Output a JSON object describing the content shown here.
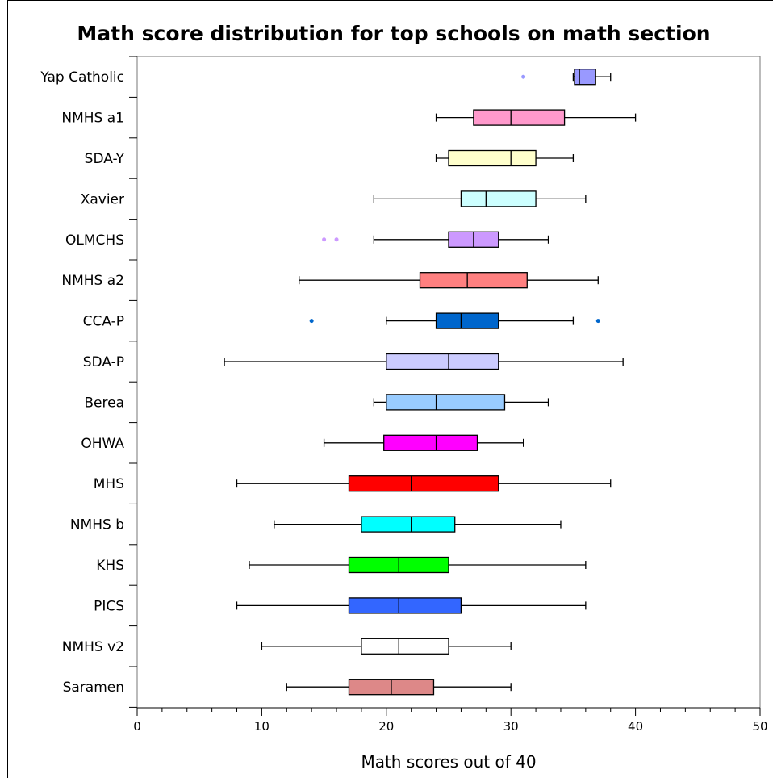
{
  "chart_data": {
    "type": "boxplot",
    "orientation": "horizontal",
    "title": "Math score distribution for top schools on math section",
    "xlabel": "Math scores out of 40",
    "xlim": [
      0,
      50
    ],
    "xticks": [
      0,
      10,
      20,
      30,
      40,
      50
    ],
    "grid": false,
    "legend": "none",
    "series": [
      {
        "name": "Yap Catholic",
        "color": "#9999ff",
        "whisker_low": 35,
        "q1": 35.1,
        "median": 35.5,
        "q3": 36.8,
        "whisker_high": 38,
        "outliers": [
          31
        ]
      },
      {
        "name": "NMHS a1",
        "color": "#ff99cc",
        "whisker_low": 24,
        "q1": 27,
        "median": 30,
        "q3": 34.3,
        "whisker_high": 40,
        "outliers": []
      },
      {
        "name": "SDA-Y",
        "color": "#ffffcc",
        "whisker_low": 24,
        "q1": 25,
        "median": 30,
        "q3": 32,
        "whisker_high": 35,
        "outliers": []
      },
      {
        "name": "Xavier",
        "color": "#ccffff",
        "whisker_low": 19,
        "q1": 26,
        "median": 28,
        "q3": 32,
        "whisker_high": 36,
        "outliers": []
      },
      {
        "name": "OLMCHS",
        "color": "#cc99ff",
        "whisker_low": 19,
        "q1": 25,
        "median": 27,
        "q3": 29,
        "whisker_high": 33,
        "outliers": [
          15,
          16
        ]
      },
      {
        "name": "NMHS a2",
        "color": "#ff8080",
        "whisker_low": 13,
        "q1": 22.7,
        "median": 26.5,
        "q3": 31.3,
        "whisker_high": 37,
        "outliers": []
      },
      {
        "name": "CCA-P",
        "color": "#0066cc",
        "whisker_low": 20,
        "q1": 24,
        "median": 26,
        "q3": 29,
        "whisker_high": 35,
        "outliers": [
          14,
          37
        ]
      },
      {
        "name": "SDA-P",
        "color": "#ccccff",
        "whisker_low": 7,
        "q1": 20,
        "median": 25,
        "q3": 29,
        "whisker_high": 39,
        "outliers": []
      },
      {
        "name": "Berea",
        "color": "#99ccff",
        "whisker_low": 19,
        "q1": 20,
        "median": 24,
        "q3": 29.5,
        "whisker_high": 33,
        "outliers": []
      },
      {
        "name": "OHWA",
        "color": "#ff00ff",
        "whisker_low": 15,
        "q1": 19.8,
        "median": 24,
        "q3": 27.3,
        "whisker_high": 31,
        "outliers": []
      },
      {
        "name": "MHS",
        "color": "#ff0000",
        "whisker_low": 8,
        "q1": 17,
        "median": 22,
        "q3": 29,
        "whisker_high": 38,
        "outliers": []
      },
      {
        "name": "NMHS b",
        "color": "#00ffff",
        "whisker_low": 11,
        "q1": 18,
        "median": 22,
        "q3": 25.5,
        "whisker_high": 34,
        "outliers": []
      },
      {
        "name": "KHS",
        "color": "#00ff00",
        "whisker_low": 9,
        "q1": 17,
        "median": 21,
        "q3": 25,
        "whisker_high": 36,
        "outliers": []
      },
      {
        "name": "PICS",
        "color": "#3366ff",
        "whisker_low": 8,
        "q1": 17,
        "median": 21,
        "q3": 26,
        "whisker_high": 36,
        "outliers": []
      },
      {
        "name": "NMHS v2",
        "color": "#ffffff",
        "whisker_low": 10,
        "q1": 18,
        "median": 21,
        "q3": 25,
        "whisker_high": 30,
        "outliers": []
      },
      {
        "name": "Saramen",
        "color": "#dd8888",
        "whisker_low": 12,
        "q1": 17,
        "median": 20.4,
        "q3": 23.8,
        "whisker_high": 30,
        "outliers": []
      }
    ]
  }
}
